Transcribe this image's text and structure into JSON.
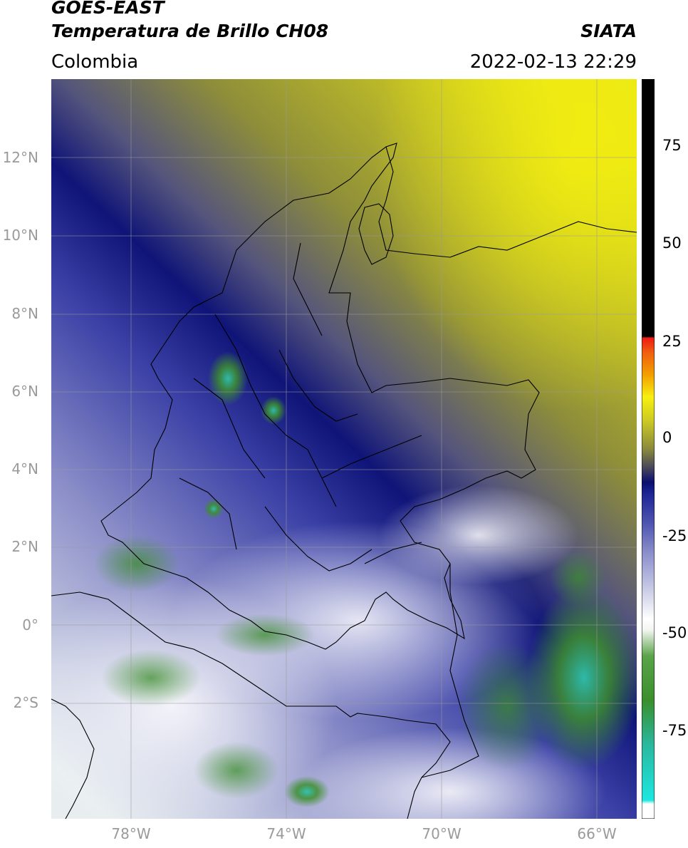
{
  "header": {
    "satellite": "GOES-EAST",
    "product": "Temperatura de Brillo CH08",
    "region": "Colombia",
    "agency": "SIATA",
    "timestamp": "2022-02-13 22:29"
  },
  "axes": {
    "lat_labels": [
      "12°N",
      "10°N",
      "8°N",
      "6°N",
      "4°N",
      "2°N",
      "0°",
      "2°S"
    ],
    "lon_labels": [
      "78°W",
      "74°W",
      "70°W",
      "66°W"
    ],
    "gridlines": true
  },
  "colorbar": {
    "tick_labels": [
      "75",
      "50",
      "25",
      "0",
      "-25",
      "-50",
      "-75"
    ],
    "colors": {
      "white": "#ffffff",
      "cyan": "#2ad9cf",
      "green": "#3a8f2c",
      "pale_green": "#e6efe0",
      "lavender": "#7a7ec4",
      "blue": "#1e2a96",
      "navy": "#0b0f70",
      "olive": "#8a8a3a",
      "yellow": "#f5ef0e",
      "orange": "#f08a00",
      "red": "#ee1b12",
      "black": "#000000"
    }
  }
}
